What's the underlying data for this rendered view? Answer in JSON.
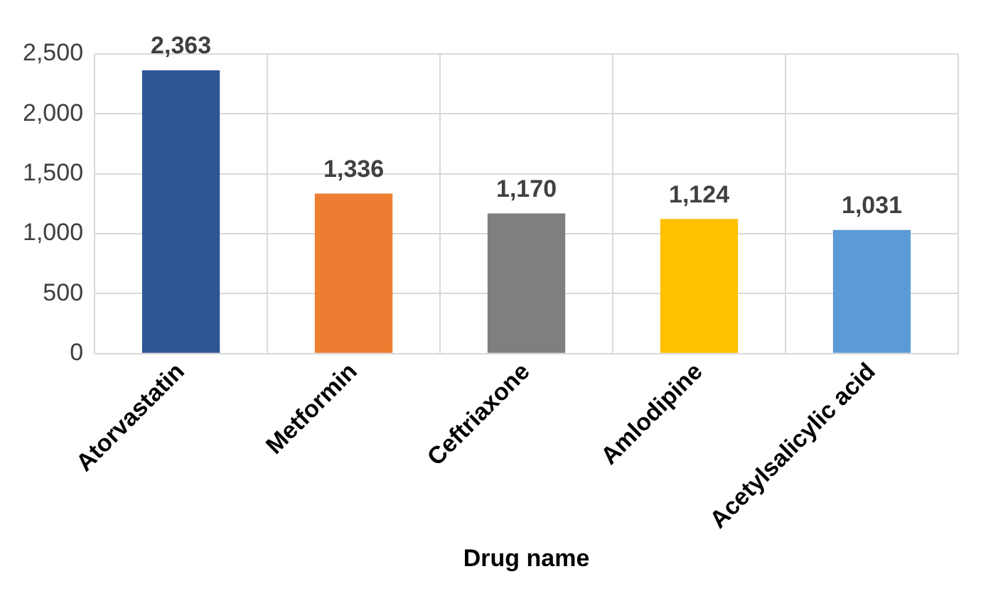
{
  "chart_data": {
    "type": "bar",
    "xlabel": "Drug name",
    "categories": [
      "Atorvastatin",
      "Metformin",
      "Ceftriaxone",
      "Amlodipine",
      "Acetylsalicylic acid"
    ],
    "values": [
      2363,
      1336,
      1170,
      1124,
      1031
    ],
    "colors": [
      "#2f5597",
      "#ed7d31",
      "#7f7f7f",
      "#ffc000",
      "#5b9bd5"
    ],
    "value_labels": [
      "2,363",
      "1,336",
      "1,170",
      "1,124",
      "1,031"
    ],
    "ylim": [
      0,
      2500
    ],
    "yticks": [
      0,
      {
        "value": 500,
        "label": "500"
      },
      {
        "value": 1000,
        "label": "1,000"
      },
      {
        "value": 1500,
        "label": "1,500"
      },
      {
        "value": 2000,
        "label": "2,000"
      },
      {
        "value": 2500,
        "label": "2,500"
      }
    ],
    "grid": true,
    "legend": false
  }
}
